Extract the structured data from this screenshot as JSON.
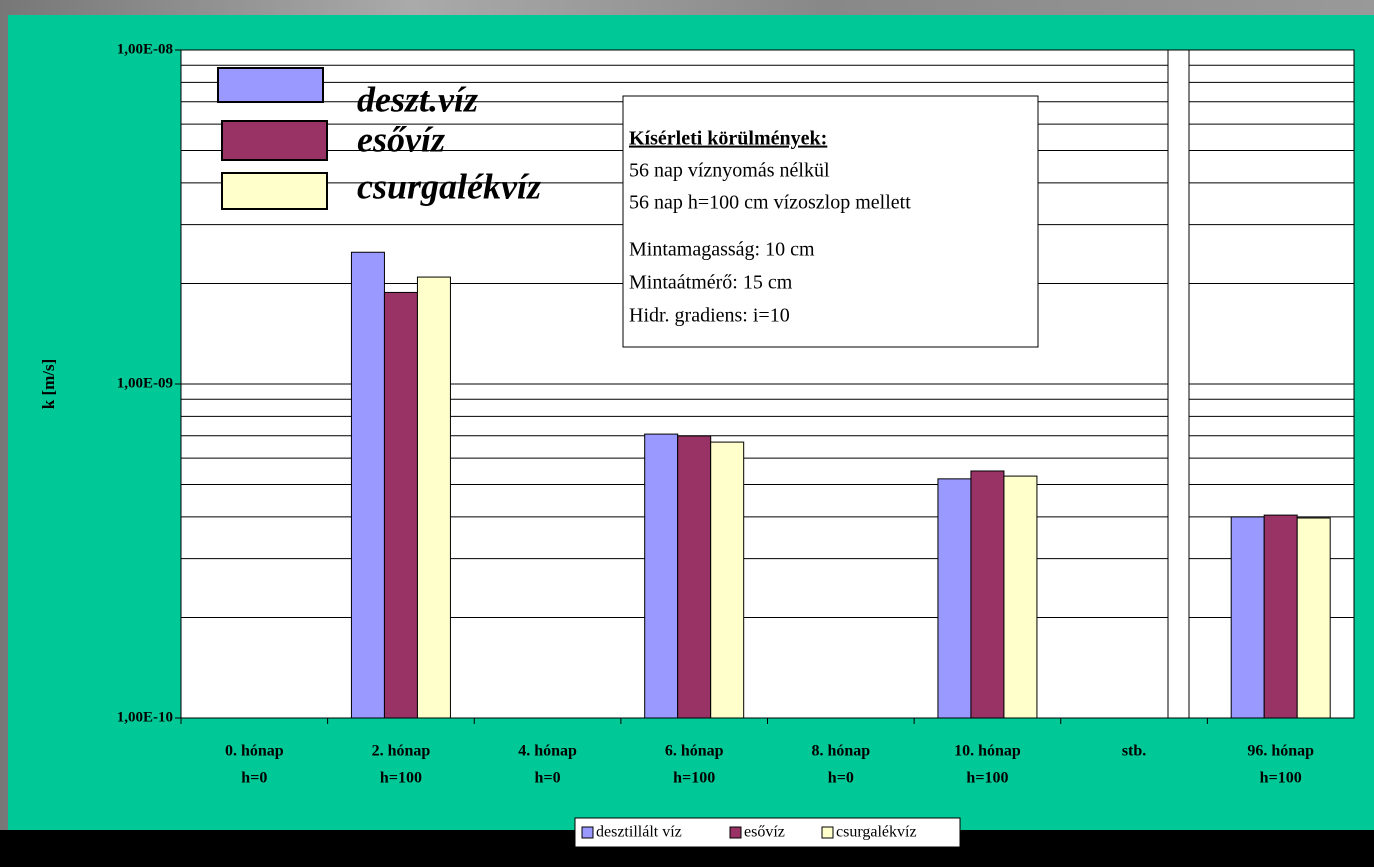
{
  "chart_data": {
    "type": "bar",
    "y_label": "k [m/s]",
    "log_scale": true,
    "grid": true,
    "categories": [
      [
        "0. hónap",
        "h=0"
      ],
      [
        "2. hónap",
        "h=100"
      ],
      [
        "4. hónap",
        "h=0"
      ],
      [
        "6. hónap",
        "h=100"
      ],
      [
        "8. hónap",
        "h=0"
      ],
      [
        "10. hónap",
        "h=100"
      ],
      [
        "stb."
      ],
      [
        "96. hónap",
        "h=100"
      ]
    ],
    "series": [
      {
        "name": "desztillált víz",
        "color": "#9999ff",
        "values": [
          null,
          2.48e-09,
          null,
          7.08e-10,
          null,
          5.2e-10,
          null,
          4e-10
        ]
      },
      {
        "name": "esővíz",
        "color": "#993366",
        "values": [
          null,
          1.88e-09,
          null,
          6.99e-10,
          null,
          5.49e-10,
          null,
          4.05e-10
        ]
      },
      {
        "name": "csurgalékvíz",
        "color": "#ffffcc",
        "values": [
          null,
          2.09e-09,
          null,
          6.7e-10,
          null,
          5.3e-10,
          null,
          3.97e-10
        ]
      }
    ],
    "ylim": [
      1e-10,
      1e-08
    ],
    "yticks": [
      {
        "value": 1e-10,
        "label": "1,00E-10"
      },
      {
        "value": 1e-09,
        "label": "1,00E-09"
      },
      {
        "value": 1e-08,
        "label": "1,00E-08"
      }
    ],
    "minor_yticks": [
      2e-10,
      3e-10,
      4e-10,
      5e-10,
      6e-10,
      7e-10,
      8e-10,
      9e-10,
      2e-09,
      3e-09,
      4e-09,
      5e-09,
      6e-09,
      7e-09,
      8e-09,
      9e-09
    ],
    "legend_position": "bottom",
    "annotation_legend": [
      "deszt.víz",
      "esővíz",
      "csurgalékvíz"
    ],
    "annotation": {
      "title": "Kísérleti körülmények:",
      "lines_a": [
        "56 nap víznyomás nélkül",
        "56 nap h=100 cm vízoszlop mellett"
      ],
      "lines_b": [
        "Mintamagasság: 10 cm",
        "Mintaátmérő: 15 cm",
        "Hidr. gradiens: i=10"
      ]
    }
  }
}
